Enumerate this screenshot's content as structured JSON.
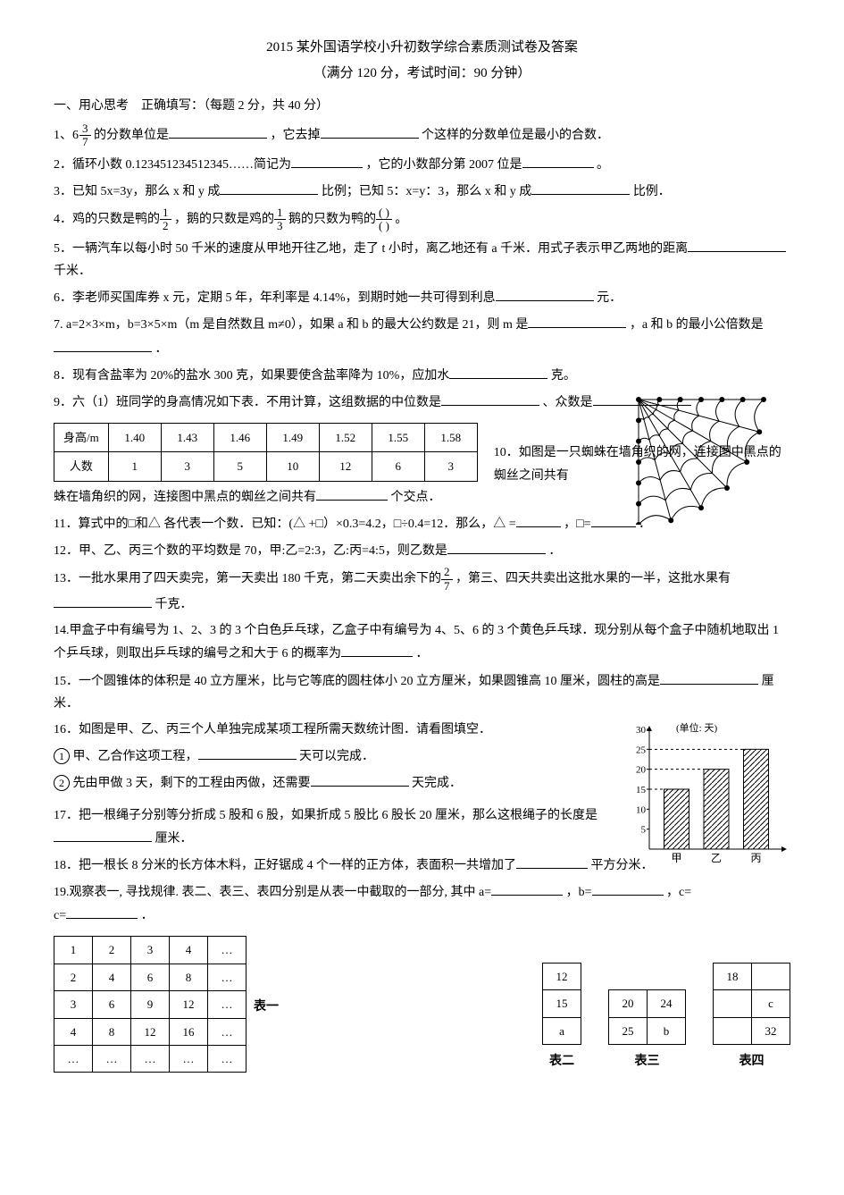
{
  "title": "2015 某外国语学校小升初数学综合素质测试卷及答案",
  "subtitle": "（满分 120 分，考试时间：90 分钟）",
  "section1_header": "一、用心思考　正确填写：（每题 2 分，共 40 分）",
  "q1_a": "1、6",
  "q1_frac_num": "3",
  "q1_frac_den": "7",
  "q1_b": " 的分数单位是",
  "q1_c": "，它去掉",
  "q1_d": "个这样的分数单位是最小的合数．",
  "q2_a": "2．循环小数 0.123451234512345……简记为",
  "q2_b": "，它的小数部分第 2007 位是",
  "q2_c": "。",
  "q3_a": "3．已知 5x=3y，那么 x 和 y 成",
  "q3_b": "比例；已知 5：x=y：3，那么 x 和 y 成",
  "q3_c": "比例．",
  "q4_a": "4．鸡的只数是鸭的",
  "q4_f1n": "1",
  "q4_f1d": "2",
  "q4_b": "，鹅的只数是鸡的",
  "q4_f2n": "1",
  "q4_f2d": "3",
  "q4_c": " 鹅的只数为鸭的",
  "q4_f3n": "(    )",
  "q4_f3d": "(    )",
  "q4_d": "。",
  "q5_a": "5．一辆汽车以每小时 50 千米的速度从甲地开往乙地，走了 t 小时，离乙地还有 a 千米．用式子表示甲乙两地的距离",
  "q5_b": "千米．",
  "q6_a": "6．李老师买国库券 x 元，定期 5 年，年利率是 4.14%，到期时她一共可得到利息",
  "q6_b": "元．",
  "q7_a": "7. a=2×3×m，b=3×5×m（m 是自然数且 m≠0），如果 a 和 b 的最大公约数是 21，则 m 是",
  "q7_b": "，a 和 b 的最小公倍数是",
  "q7_c": "．",
  "q8_a": "8．现有含盐率为 20%的盐水 300 克，如果要使含盐率降为 10%，应加水",
  "q8_b": "克。",
  "q9_a": "9．六（1）班同学的身高情况如下表．不用计算，这组数据的中位数是",
  "q9_b": "、众数是",
  "q9_table_header": [
    "身高/m",
    "1.40",
    "1.43",
    "1.46",
    "1.49",
    "1.52",
    "1.55",
    "1.58"
  ],
  "q9_table_row": [
    "人数",
    "1",
    "3",
    "5",
    "10",
    "12",
    "6",
    "3"
  ],
  "q10_a": "10．如图是一只蜘蛛在墙角织的网，连接图中黑点的蜘丝之间共有",
  "q10_b": "个交点．",
  "q11_a": "11．算式中的□和△ 各代表一个数．已知：(△ +□）×0.3=4.2，□÷0.4=12．那么，△ =",
  "q11_b": "，□=",
  "q11_c": "．",
  "q12_a": "12．甲、乙、丙三个数的平均数是 70，甲:乙=2:3，乙:丙=4:5，则乙数是",
  "q12_b": "．",
  "q13_a": "13．一批水果用了四天卖完，第一天卖出 180 千克，第二天卖出余下的",
  "q13_fn": "2",
  "q13_fd": "7",
  "q13_b": "，第三、四天共卖出这批水果的一半，这批水果有",
  "q13_c": "千克．",
  "q14_a": "14.甲盒子中有编号为 1、2、3 的 3 个白色乒乓球，乙盒子中有编号为 4、5、6 的 3 个黄色乒乓球．现分别从每个盒子中随机地取出 1 个乒乓球，则取出乒乓球的编号之和大于 6 的概率为",
  "q14_b": "．",
  "q15_a": "15．一个圆锥体的体积是 40 立方厘米，比与它等底的圆柱体小 20 立方厘米，如果圆锥高 10 厘米，圆柱的高是",
  "q15_b": "厘米．",
  "q16_a": "16．如图是甲、乙、丙三个人单独完成某项工程所需天数统计图．请看图填空．",
  "q16_1": "甲、乙合作这项工程，",
  "q16_1b": "天可以完成．",
  "q16_2": "先由甲做 3 天，剩下的工程由丙做，还需要",
  "q16_2b": "天完成．",
  "q16_chart": {
    "type": "bar",
    "categories": [
      "甲",
      "乙",
      "丙"
    ],
    "values": [
      15,
      20,
      25
    ],
    "ylim": [
      0,
      30
    ],
    "ytick_step": 5,
    "unit_label": "(单位: 天)",
    "bar_fill": "hatched",
    "axis_color": "#000",
    "grid_style": "dashed"
  },
  "q17_a": "17．把一根绳子分别等分折成 5 股和 6 股，如果折成 5 股比 6 股长 20 厘米，那么这根绳子的长度是",
  "q17_b": "厘米．",
  "q18_a": "18．把一根长 8 分米的长方体木料，正好锯成 4 个一样的正方体，表面积一共增加了",
  "q18_b": "平方分米．",
  "q19_a": "19.观察表一, 寻找规律. 表二、表三、表四分别是从表一中截取的一部分, 其中 a=",
  "q19_b": "，b=",
  "q19_c": "，c=",
  "q19_d": "．",
  "table1": {
    "rows": [
      [
        "1",
        "2",
        "3",
        "4",
        "…"
      ],
      [
        "2",
        "4",
        "6",
        "8",
        "…"
      ],
      [
        "3",
        "6",
        "9",
        "12",
        "…"
      ],
      [
        "4",
        "8",
        "12",
        "16",
        "…"
      ],
      [
        "…",
        "…",
        "…",
        "…",
        "…"
      ]
    ],
    "label": "表一"
  },
  "table2": {
    "rows": [
      [
        "12"
      ],
      [
        "15"
      ],
      [
        "a"
      ]
    ],
    "label": "表二"
  },
  "table3": {
    "rows": [
      [
        "20",
        "24"
      ],
      [
        "25",
        "b"
      ]
    ],
    "label": "表三"
  },
  "table4": {
    "rows": [
      [
        "18",
        ""
      ],
      [
        "",
        "c"
      ],
      [
        "",
        "32"
      ]
    ],
    "label": "表四"
  },
  "spider_web": {
    "type": "diagram",
    "description": "quarter web with radial and curved threads, black dots at intersections",
    "radial_lines": 7,
    "curved_lines": 6,
    "dot_color": "#000",
    "line_color": "#000"
  }
}
